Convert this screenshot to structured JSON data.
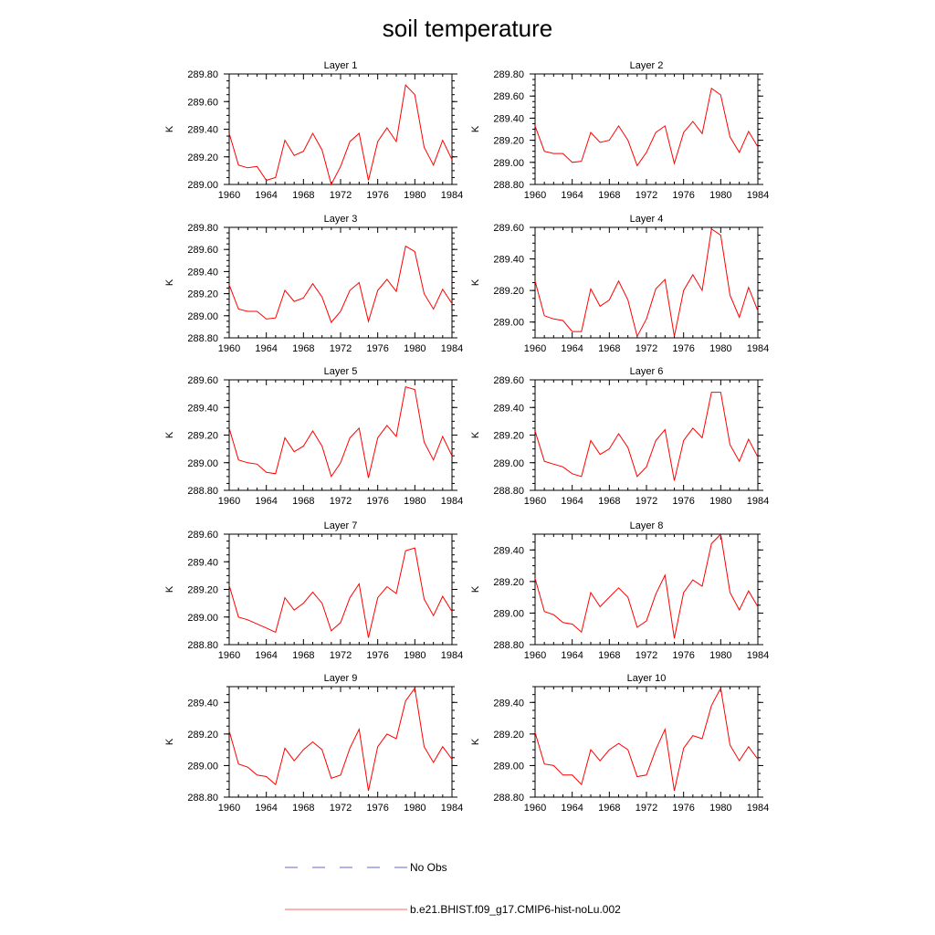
{
  "chart_data": {
    "type": "line",
    "title": "soil temperature",
    "x": [
      1960,
      1961,
      1962,
      1963,
      1964,
      1965,
      1966,
      1967,
      1968,
      1969,
      1970,
      1971,
      1972,
      1973,
      1974,
      1975,
      1976,
      1977,
      1978,
      1979,
      1980,
      1981,
      1982,
      1983,
      1984
    ],
    "x_ticks": [
      "1960",
      "1964",
      "1968",
      "1972",
      "1976",
      "1980",
      "1984"
    ],
    "xlim": [
      1960,
      1984
    ],
    "line_color": "#ff0000",
    "obs_color": "#6666cc",
    "legend": {
      "placement": "bottom-center",
      "entries": [
        "No Obs",
        "b.e21.BHIST.f09_g17.CMIP6-hist-noLu.002"
      ]
    },
    "panels": [
      {
        "title": "Layer 1",
        "ylabel": "K",
        "ylim": [
          289.0,
          289.8
        ],
        "ytick_step": 0.2,
        "yticks": [
          "289.00",
          "289.20",
          "289.40",
          "289.60",
          "289.80"
        ],
        "series": [
          {
            "name": "b.e21.BHIST.f09_g17.CMIP6-hist-noLu.002",
            "values": [
              289.37,
              289.14,
              289.12,
              289.13,
              289.03,
              289.05,
              289.32,
              289.21,
              289.24,
              289.37,
              289.25,
              289.0,
              289.13,
              289.31,
              289.37,
              289.03,
              289.31,
              289.41,
              289.31,
              289.72,
              289.65,
              289.27,
              289.14,
              289.32,
              289.18
            ]
          }
        ]
      },
      {
        "title": "Layer 2",
        "ylabel": "K",
        "ylim": [
          288.8,
          289.8
        ],
        "ytick_step": 0.2,
        "yticks": [
          "288.80",
          "289.00",
          "289.20",
          "289.40",
          "289.60",
          "289.80"
        ],
        "series": [
          {
            "name": "b.e21.BHIST.f09_g17.CMIP6-hist-noLu.002",
            "values": [
              289.33,
              289.1,
              289.08,
              289.08,
              289.0,
              289.01,
              289.27,
              289.18,
              289.2,
              289.33,
              289.2,
              288.97,
              289.09,
              289.27,
              289.33,
              288.99,
              289.27,
              289.37,
              289.26,
              289.67,
              289.61,
              289.23,
              289.09,
              289.28,
              289.14
            ]
          }
        ]
      },
      {
        "title": "Layer 3",
        "ylabel": "K",
        "ylim": [
          288.8,
          289.8
        ],
        "ytick_step": 0.2,
        "yticks": [
          "288.80",
          "289.00",
          "289.20",
          "289.40",
          "289.60",
          "289.80"
        ],
        "series": [
          {
            "name": "b.e21.BHIST.f09_g17.CMIP6-hist-noLu.002",
            "values": [
              289.28,
              289.06,
              289.04,
              289.04,
              288.97,
              288.98,
              289.23,
              289.13,
              289.16,
              289.29,
              289.17,
              288.94,
              289.04,
              289.23,
              289.3,
              288.95,
              289.23,
              289.33,
              289.22,
              289.63,
              289.58,
              289.2,
              289.06,
              289.24,
              289.11
            ]
          }
        ]
      },
      {
        "title": "Layer 4",
        "ylabel": "K",
        "ylim": [
          288.9,
          289.6
        ],
        "ytick_step": 0.2,
        "yticks": [
          "289.00",
          "289.20",
          "289.40",
          "289.60"
        ],
        "series": [
          {
            "name": "b.e21.BHIST.f09_g17.CMIP6-hist-noLu.002",
            "values": [
              289.26,
              289.04,
              289.02,
              289.01,
              288.94,
              288.94,
              289.21,
              289.1,
              289.14,
              289.26,
              289.14,
              288.91,
              289.02,
              289.21,
              289.27,
              288.91,
              289.2,
              289.3,
              289.2,
              289.59,
              289.55,
              289.17,
              289.03,
              289.22,
              289.07
            ]
          }
        ]
      },
      {
        "title": "Layer 5",
        "ylabel": "K",
        "ylim": [
          288.8,
          289.6
        ],
        "ytick_step": 0.2,
        "yticks": [
          "288.80",
          "289.00",
          "289.20",
          "289.40",
          "289.60"
        ],
        "series": [
          {
            "name": "b.e21.BHIST.f09_g17.CMIP6-hist-noLu.002",
            "values": [
              289.25,
              289.02,
              289.0,
              288.99,
              288.93,
              288.92,
              289.18,
              289.08,
              289.12,
              289.23,
              289.12,
              288.9,
              289.0,
              289.18,
              289.25,
              288.89,
              289.18,
              289.27,
              289.19,
              289.55,
              289.53,
              289.15,
              289.02,
              289.19,
              289.05
            ]
          }
        ]
      },
      {
        "title": "Layer 6",
        "ylabel": "K",
        "ylim": [
          288.8,
          289.6
        ],
        "ytick_step": 0.2,
        "yticks": [
          "288.80",
          "289.00",
          "289.20",
          "289.40",
          "289.60"
        ],
        "series": [
          {
            "name": "b.e21.BHIST.f09_g17.CMIP6-hist-noLu.002",
            "values": [
              289.23,
              289.01,
              288.99,
              288.97,
              288.92,
              288.9,
              289.16,
              289.06,
              289.1,
              289.21,
              289.11,
              288.9,
              288.97,
              289.16,
              289.24,
              288.87,
              289.16,
              289.25,
              289.18,
              289.51,
              289.51,
              289.13,
              289.01,
              289.17,
              289.04
            ]
          }
        ]
      },
      {
        "title": "Layer 7",
        "ylabel": "K",
        "ylim": [
          288.8,
          289.6
        ],
        "ytick_step": 0.2,
        "yticks": [
          "288.80",
          "289.00",
          "289.20",
          "289.40",
          "289.60"
        ],
        "series": [
          {
            "name": "b.e21.BHIST.f09_g17.CMIP6-hist-noLu.002",
            "values": [
              289.23,
              289.0,
              288.98,
              288.95,
              288.92,
              288.89,
              289.14,
              289.05,
              289.1,
              289.18,
              289.1,
              288.9,
              288.96,
              289.14,
              289.24,
              288.85,
              289.14,
              289.22,
              289.17,
              289.48,
              289.5,
              289.13,
              289.01,
              289.15,
              289.04
            ]
          }
        ]
      },
      {
        "title": "Layer 8",
        "ylabel": "K",
        "ylim": [
          288.8,
          289.5
        ],
        "ytick_step": 0.2,
        "yticks": [
          "288.80",
          "289.00",
          "289.20",
          "289.40"
        ],
        "series": [
          {
            "name": "b.e21.BHIST.f09_g17.CMIP6-hist-noLu.002",
            "values": [
              289.22,
              289.01,
              288.99,
              288.94,
              288.93,
              288.88,
              289.13,
              289.04,
              289.1,
              289.16,
              289.1,
              288.91,
              288.95,
              289.12,
              289.24,
              288.84,
              289.13,
              289.21,
              289.17,
              289.44,
              289.5,
              289.13,
              289.02,
              289.14,
              289.04
            ]
          }
        ]
      },
      {
        "title": "Layer 9",
        "ylabel": "K",
        "ylim": [
          288.8,
          289.5
        ],
        "ytick_step": 0.2,
        "yticks": [
          "288.80",
          "289.00",
          "289.20",
          "289.40"
        ],
        "series": [
          {
            "name": "b.e21.BHIST.f09_g17.CMIP6-hist-noLu.002",
            "values": [
              289.22,
              289.01,
              288.99,
              288.94,
              288.93,
              288.88,
              289.11,
              289.03,
              289.1,
              289.15,
              289.1,
              288.92,
              288.94,
              289.11,
              289.23,
              288.84,
              289.12,
              289.2,
              289.17,
              289.41,
              289.49,
              289.12,
              289.02,
              289.12,
              289.04
            ]
          }
        ]
      },
      {
        "title": "Layer 10",
        "ylabel": "K",
        "ylim": [
          288.8,
          289.5
        ],
        "ytick_step": 0.2,
        "yticks": [
          "288.80",
          "289.00",
          "289.20",
          "289.40"
        ],
        "series": [
          {
            "name": "b.e21.BHIST.f09_g17.CMIP6-hist-noLu.002",
            "values": [
              289.21,
              289.01,
              289.0,
              288.94,
              288.94,
              288.88,
              289.1,
              289.03,
              289.1,
              289.14,
              289.1,
              288.93,
              288.94,
              289.1,
              289.23,
              288.84,
              289.11,
              289.19,
              289.17,
              289.38,
              289.49,
              289.13,
              289.03,
              289.12,
              289.04
            ]
          }
        ]
      }
    ]
  }
}
